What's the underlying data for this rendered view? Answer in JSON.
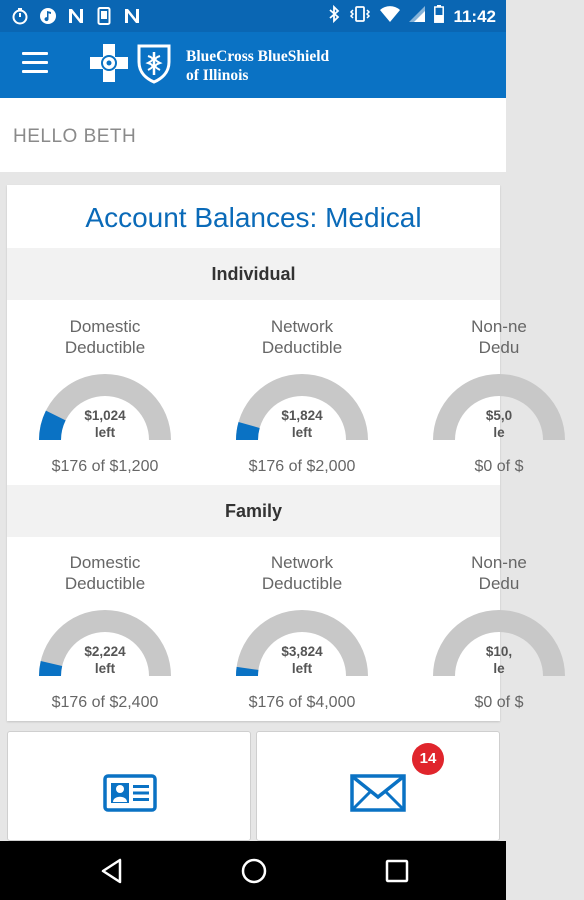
{
  "status_bar": {
    "time": "11:42",
    "left_icons": [
      "stopwatch-icon",
      "music-note-icon",
      "n-icon",
      "phone-icon",
      "n-icon"
    ],
    "right_icons": [
      "bluetooth-icon",
      "vibrate-icon",
      "wifi-icon",
      "signal-icon",
      "battery-icon"
    ]
  },
  "app_bar": {
    "menu_icon": "hamburger-menu-icon",
    "brand_line1": "BlueCross BlueShield",
    "brand_line2": "of Illinois"
  },
  "greeting": "HELLO BETH",
  "balances": {
    "title": "Account Balances: Medical",
    "sections": [
      {
        "heading": "Individual",
        "gauges": [
          {
            "label_line1": "Domestic",
            "label_line2": "Deductible",
            "left_line1": "$1,024",
            "left_line2": "left",
            "amount": "$176 of $1,200",
            "used_fraction": 0.147
          },
          {
            "label_line1": "Network",
            "label_line2": "Deductible",
            "left_line1": "$1,824",
            "left_line2": "left",
            "amount": "$176 of $2,000",
            "used_fraction": 0.088
          },
          {
            "label_line1": "Non-ne",
            "label_line2": "Dedu",
            "left_line1": "$5,0",
            "left_line2": "le",
            "amount": "$0 of $",
            "used_fraction": 0
          }
        ]
      },
      {
        "heading": "Family",
        "gauges": [
          {
            "label_line1": "Domestic",
            "label_line2": "Deductible",
            "left_line1": "$2,224",
            "left_line2": "left",
            "amount": "$176 of $2,400",
            "used_fraction": 0.073
          },
          {
            "label_line1": "Network",
            "label_line2": "Deductible",
            "left_line1": "$3,824",
            "left_line2": "left",
            "amount": "$176 of $4,000",
            "used_fraction": 0.044
          },
          {
            "label_line1": "Non-ne",
            "label_line2": "Dedu",
            "left_line1": "$10,",
            "left_line2": "le",
            "amount": "$0 of $",
            "used_fraction": 0
          }
        ]
      }
    ]
  },
  "tiles": {
    "left_icon": "id-card-icon",
    "right_icon": "mail-envelope-icon",
    "message_badge": "14"
  },
  "nav_bar": {
    "back_icon": "back-triangle-icon",
    "home_icon": "home-circle-icon",
    "recents_icon": "recents-square-icon"
  },
  "colors": {
    "primary": "#0a72c4",
    "status_bar": "#0a66b3",
    "gauge_fill": "#0a72c4",
    "gauge_track": "#c8c8c8",
    "badge": "#e0252c"
  }
}
